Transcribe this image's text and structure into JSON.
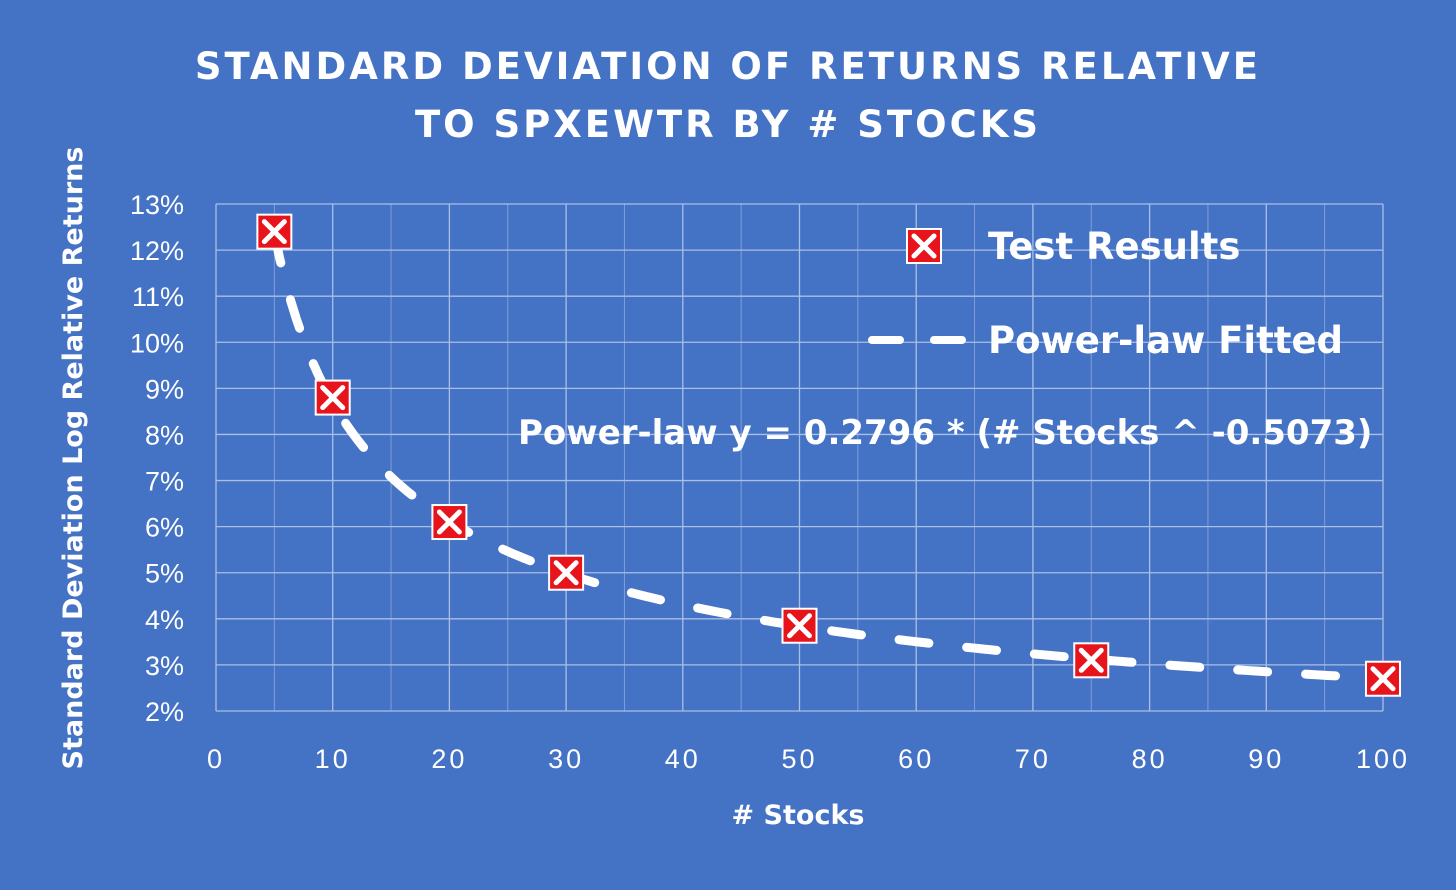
{
  "chart_data": {
    "type": "scatter",
    "title_lines": [
      "STANDARD DEVIATION OF RETURNS RELATIVE",
      "TO SPXEWTR BY # STOCKS"
    ],
    "xlabel": "# Stocks",
    "ylabel": "Standard Deviation Log Relative Returns",
    "xlim": [
      0,
      100
    ],
    "ylim": [
      0.02,
      0.13
    ],
    "x_ticks": [
      0,
      10,
      20,
      30,
      40,
      50,
      60,
      70,
      80,
      90,
      100
    ],
    "x_tick_labels": [
      "0",
      "10",
      "20",
      "30",
      "40",
      "50",
      "60",
      "70",
      "80",
      "90",
      "100"
    ],
    "y_ticks": [
      0.02,
      0.03,
      0.04,
      0.05,
      0.06,
      0.07,
      0.08,
      0.09,
      0.1,
      0.11,
      0.12,
      0.13
    ],
    "y_tick_labels": [
      "2%",
      "3%",
      "4%",
      "5%",
      "6%",
      "7%",
      "8%",
      "9%",
      "10%",
      "11%",
      "12%",
      "13%"
    ],
    "grid": true,
    "legend_position": "top-right",
    "series": [
      {
        "name": "Test Results",
        "kind": "markers",
        "marker": "x-box",
        "marker_color": "#e8141b",
        "x": [
          5,
          10,
          20,
          30,
          50,
          75,
          100
        ],
        "y": [
          0.124,
          0.088,
          0.061,
          0.05,
          0.0385,
          0.031,
          0.027
        ]
      },
      {
        "name": "Power-law Fitted",
        "kind": "dashed-line",
        "line_color": "#ffffff",
        "fit": {
          "coefficient": 0.2796,
          "exponent": -0.5073
        },
        "x_range": [
          5,
          100
        ]
      }
    ],
    "annotation": "Power-law y = 0.2796 * (# Stocks ^ -0.5073)"
  }
}
